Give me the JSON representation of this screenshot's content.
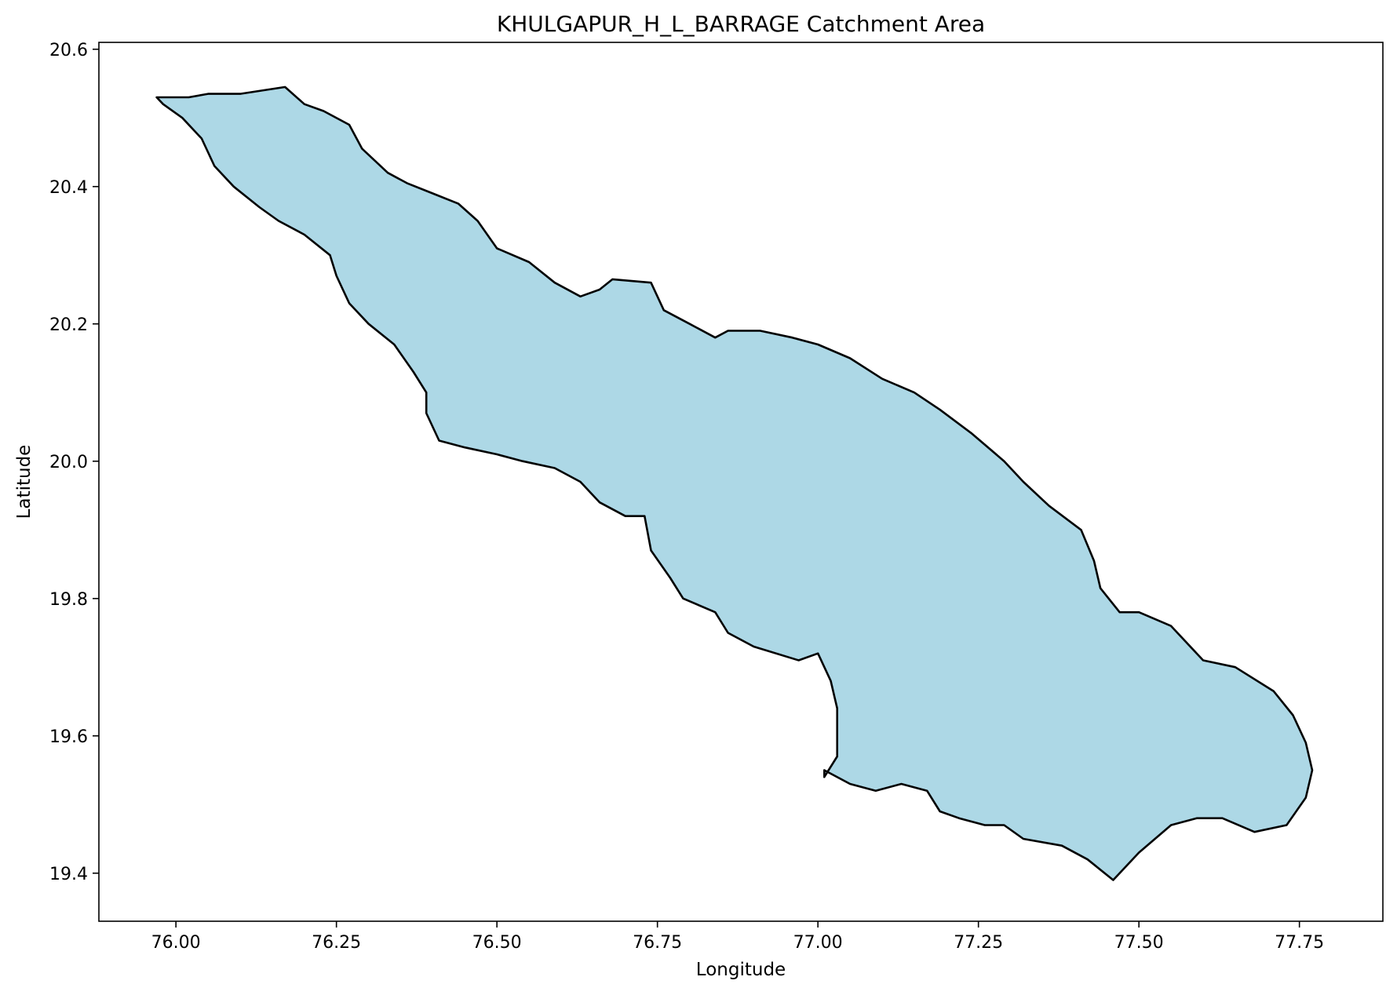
{
  "figure": {
    "title": "KHULGAPUR_H_L_BARRAGE Catchment Area",
    "background": "#ffffff"
  },
  "chart_data": {
    "type": "area",
    "title": "KHULGAPUR_H_L_BARRAGE Catchment Area",
    "xlabel": "Longitude",
    "ylabel": "Latitude",
    "xlim": [
      75.88,
      77.88
    ],
    "ylim": [
      19.33,
      20.61
    ],
    "xticks": [
      76.0,
      76.25,
      76.5,
      76.75,
      77.0,
      77.25,
      77.5,
      77.75
    ],
    "xtick_labels": [
      "76.00",
      "76.25",
      "76.50",
      "76.75",
      "77.00",
      "77.25",
      "77.50",
      "77.75"
    ],
    "yticks": [
      19.4,
      19.6,
      19.8,
      20.0,
      20.2,
      20.4,
      20.6
    ],
    "ytick_labels": [
      "19.4",
      "19.6",
      "19.8",
      "20.0",
      "20.2",
      "20.4",
      "20.6"
    ],
    "grid": false,
    "legend": "none",
    "fill_color": "#add8e6",
    "edge_color": "#000000",
    "polygon": [
      [
        75.97,
        20.53
      ],
      [
        76.02,
        20.53
      ],
      [
        76.05,
        20.535
      ],
      [
        76.1,
        20.535
      ],
      [
        76.17,
        20.545
      ],
      [
        76.2,
        20.52
      ],
      [
        76.23,
        20.51
      ],
      [
        76.27,
        20.49
      ],
      [
        76.29,
        20.455
      ],
      [
        76.33,
        20.42
      ],
      [
        76.36,
        20.405
      ],
      [
        76.4,
        20.39
      ],
      [
        76.44,
        20.375
      ],
      [
        76.47,
        20.35
      ],
      [
        76.5,
        20.31
      ],
      [
        76.55,
        20.29
      ],
      [
        76.59,
        20.26
      ],
      [
        76.63,
        20.24
      ],
      [
        76.66,
        20.25
      ],
      [
        76.68,
        20.265
      ],
      [
        76.74,
        20.26
      ],
      [
        76.76,
        20.22
      ],
      [
        76.8,
        20.2
      ],
      [
        76.84,
        20.18
      ],
      [
        76.86,
        20.19
      ],
      [
        76.91,
        20.19
      ],
      [
        76.96,
        20.18
      ],
      [
        77.0,
        20.17
      ],
      [
        77.05,
        20.15
      ],
      [
        77.1,
        20.12
      ],
      [
        77.15,
        20.1
      ],
      [
        77.19,
        20.075
      ],
      [
        77.24,
        20.04
      ],
      [
        77.29,
        20.0
      ],
      [
        77.32,
        19.97
      ],
      [
        77.36,
        19.935
      ],
      [
        77.41,
        19.9
      ],
      [
        77.43,
        19.855
      ],
      [
        77.44,
        19.815
      ],
      [
        77.47,
        19.78
      ],
      [
        77.5,
        19.78
      ],
      [
        77.55,
        19.76
      ],
      [
        77.6,
        19.71
      ],
      [
        77.65,
        19.7
      ],
      [
        77.71,
        19.665
      ],
      [
        77.74,
        19.63
      ],
      [
        77.76,
        19.59
      ],
      [
        77.77,
        19.55
      ],
      [
        77.76,
        19.51
      ],
      [
        77.73,
        19.47
      ],
      [
        77.68,
        19.46
      ],
      [
        77.63,
        19.48
      ],
      [
        77.59,
        19.48
      ],
      [
        77.55,
        19.47
      ],
      [
        77.5,
        19.43
      ],
      [
        77.46,
        19.39
      ],
      [
        77.42,
        19.42
      ],
      [
        77.38,
        19.44
      ],
      [
        77.32,
        19.45
      ],
      [
        77.29,
        19.47
      ],
      [
        77.26,
        19.47
      ],
      [
        77.22,
        19.48
      ],
      [
        77.19,
        19.49
      ],
      [
        77.17,
        19.52
      ],
      [
        77.13,
        19.53
      ],
      [
        77.09,
        19.52
      ],
      [
        77.05,
        19.53
      ],
      [
        77.01,
        19.55
      ],
      [
        77.01,
        19.54
      ],
      [
        77.03,
        19.57
      ],
      [
        77.03,
        19.64
      ],
      [
        77.02,
        19.68
      ],
      [
        77.0,
        19.72
      ],
      [
        76.97,
        19.71
      ],
      [
        76.9,
        19.73
      ],
      [
        76.86,
        19.75
      ],
      [
        76.84,
        19.78
      ],
      [
        76.79,
        19.8
      ],
      [
        76.77,
        19.83
      ],
      [
        76.74,
        19.87
      ],
      [
        76.73,
        19.92
      ],
      [
        76.7,
        19.92
      ],
      [
        76.66,
        19.94
      ],
      [
        76.63,
        19.97
      ],
      [
        76.59,
        19.99
      ],
      [
        76.54,
        20.0
      ],
      [
        76.5,
        20.01
      ],
      [
        76.45,
        20.02
      ],
      [
        76.41,
        20.03
      ],
      [
        76.39,
        20.07
      ],
      [
        76.39,
        20.1
      ],
      [
        76.37,
        20.13
      ],
      [
        76.34,
        20.17
      ],
      [
        76.3,
        20.2
      ],
      [
        76.27,
        20.23
      ],
      [
        76.25,
        20.27
      ],
      [
        76.24,
        20.3
      ],
      [
        76.2,
        20.33
      ],
      [
        76.16,
        20.35
      ],
      [
        76.13,
        20.37
      ],
      [
        76.09,
        20.4
      ],
      [
        76.06,
        20.43
      ],
      [
        76.04,
        20.47
      ],
      [
        76.01,
        20.5
      ],
      [
        75.98,
        20.52
      ],
      [
        75.97,
        20.53
      ]
    ]
  }
}
